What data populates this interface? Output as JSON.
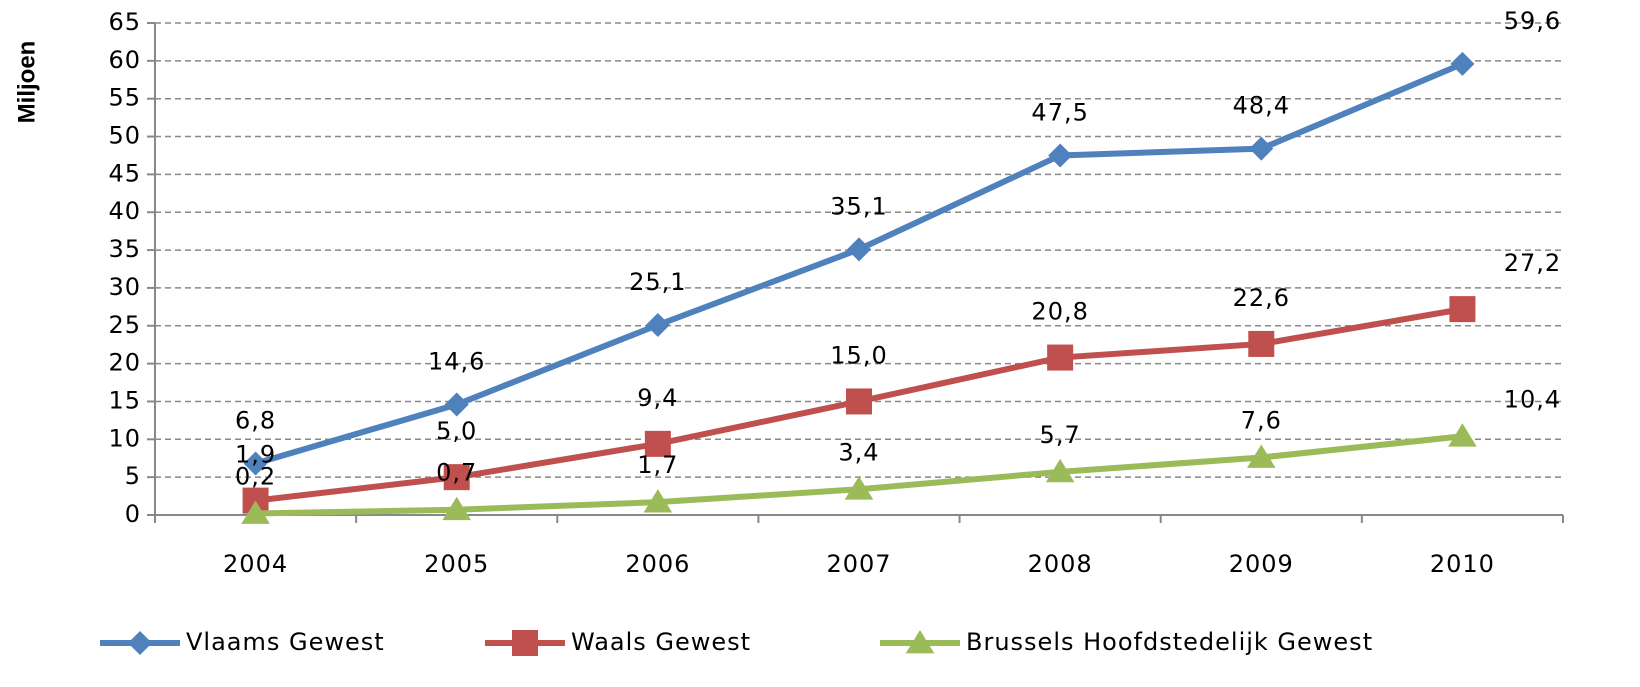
{
  "chart_data": {
    "type": "line",
    "y_label": "Miljoen",
    "categories": [
      "2004",
      "2005",
      "2006",
      "2007",
      "2008",
      "2009",
      "2010"
    ],
    "series": [
      {
        "name": "Vlaams Gewest",
        "color": "#4f81bd",
        "marker": "diamond",
        "values": [
          6.8,
          14.6,
          25.1,
          35.1,
          47.5,
          48.4,
          59.6
        ],
        "value_labels": [
          "6,8",
          "14,6",
          "25,1",
          "35,1",
          "47,5",
          "48,4",
          "59,6"
        ]
      },
      {
        "name": "Waals Gewest",
        "color": "#c0504d",
        "marker": "square",
        "values": [
          1.9,
          5.0,
          9.4,
          15.0,
          20.8,
          22.6,
          27.2
        ],
        "value_labels": [
          "1,9",
          "5,0",
          "9,4",
          "15,0",
          "20,8",
          "22,6",
          "27,2"
        ]
      },
      {
        "name": "Brussels Hoofdstedelijk Gewest",
        "color": "#9bbb59",
        "marker": "triangle",
        "values": [
          0.2,
          0.7,
          1.7,
          3.4,
          5.7,
          7.6,
          10.4
        ],
        "value_labels": [
          "0,2",
          "0,7",
          "1,7",
          "3,4",
          "5,7",
          "7,6",
          "10,4"
        ]
      }
    ],
    "ylim": [
      0,
      65
    ],
    "yticks": [
      0,
      5,
      10,
      15,
      20,
      25,
      30,
      35,
      40,
      45,
      50,
      55,
      60,
      65
    ],
    "grid": true,
    "legend": "bottom"
  }
}
